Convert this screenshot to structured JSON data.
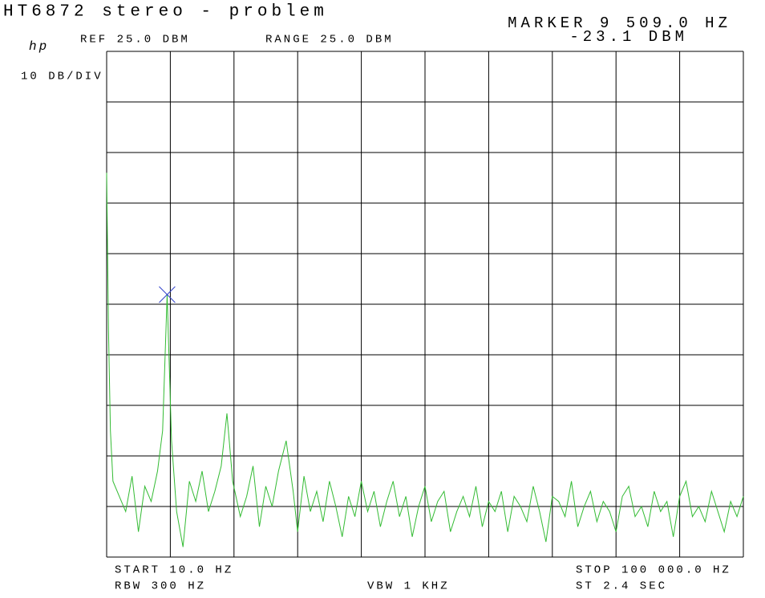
{
  "chart_data": {
    "type": "line",
    "title": "HT6872 stereo - problem",
    "logo": "hp",
    "ref_level": "REF 25.0 DBM",
    "range": "RANGE 25.0 DBM",
    "scale": "10 DB/DIV",
    "marker": {
      "label": "MARKER 9 509.0 HZ",
      "value_label": "-23.1 DBM",
      "x": 9509,
      "y": -23.1,
      "color": "#3344cc"
    },
    "start": "START 10.0 HZ",
    "stop": "STOP 100 000.0 HZ",
    "rbw": "RBW 300 HZ",
    "vbw": "VBW 1 KHZ",
    "sweep_time": "ST 2.4 SEC",
    "xlim": [
      10,
      100000
    ],
    "ylim": [
      -75,
      25
    ],
    "xticks": [
      10,
      10009,
      20008,
      30007,
      40006,
      50005,
      60004,
      70003,
      80002,
      90001,
      100000
    ],
    "yticks": [
      -75,
      -65,
      -55,
      -45,
      -35,
      -25,
      -15,
      -5,
      5,
      15,
      25
    ],
    "grid": true,
    "series": [
      {
        "name": "trace",
        "color": "#33bb33",
        "x": [
          10,
          300,
          600,
          1000,
          2000,
          3000,
          4000,
          5000,
          6000,
          7000,
          8000,
          8800,
          9509,
          10200,
          11000,
          12000,
          13000,
          14000,
          15000,
          16000,
          17000,
          18000,
          18900,
          19800,
          21000,
          22000,
          23000,
          24000,
          25000,
          26000,
          27000,
          28200,
          29300,
          30000,
          31000,
          32000,
          33000,
          34000,
          35000,
          36000,
          37000,
          38000,
          39000,
          40000,
          41000,
          42000,
          43000,
          44000,
          45000,
          46000,
          47000,
          48000,
          49000,
          50000,
          51000,
          52000,
          53000,
          54000,
          55000,
          56000,
          57000,
          58000,
          59000,
          60000,
          61000,
          62000,
          63000,
          64000,
          65000,
          66000,
          67000,
          68000,
          69000,
          70000,
          71000,
          72000,
          73000,
          74000,
          75000,
          76000,
          77000,
          78000,
          79000,
          80000,
          81000,
          82000,
          83000,
          84000,
          85000,
          86000,
          87000,
          88000,
          89000,
          90000,
          91000,
          92000,
          93000,
          94000,
          95000,
          96000,
          97000,
          98000,
          99000,
          100000
        ],
        "values": [
          1,
          -30,
          -50,
          -60,
          -63,
          -66,
          -59,
          -70,
          -61,
          -64,
          -58,
          -50,
          -23.1,
          -52,
          -66,
          -73,
          -60,
          -64,
          -58,
          -66,
          -62,
          -57,
          -46.6,
          -60,
          -67,
          -63,
          -57,
          -69,
          -61,
          -65,
          -58,
          -52,
          -62,
          -70,
          -59,
          -66,
          -62,
          -68,
          -60,
          -65,
          -71,
          -63,
          -67,
          -60,
          -66,
          -62,
          -69,
          -64,
          -60,
          -67,
          -63,
          -71,
          -65,
          -61,
          -68,
          -64,
          -62,
          -70,
          -66,
          -63,
          -67,
          -61,
          -69,
          -64,
          -66,
          -62,
          -70,
          -63,
          -65,
          -68,
          -61,
          -66,
          -72,
          -63,
          -64,
          -67,
          -60,
          -69,
          -65,
          -62,
          -68,
          -64,
          -66,
          -70,
          -63,
          -61,
          -67,
          -65,
          -69,
          -62,
          -66,
          -64,
          -71,
          -63,
          -60,
          -67,
          -65,
          -68,
          -62,
          -66,
          -70,
          -64,
          -67,
          -63
        ]
      }
    ]
  }
}
